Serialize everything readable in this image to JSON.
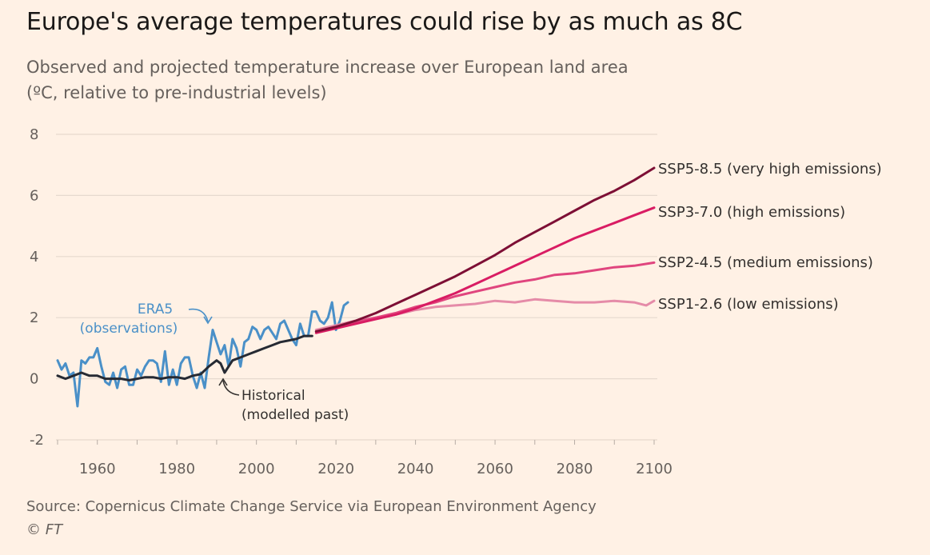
{
  "title": "Europe's average temperatures could rise by as much as 8C",
  "subtitle_line1": "Observed and projected temperature increase over European land area",
  "subtitle_line2": "(ºC, relative to pre-industrial levels)",
  "source": "Source: Copernicus Climate Change Service via European Environment Agency",
  "copyright": "© FT",
  "chart_data": {
    "type": "line",
    "xlim": [
      1950,
      2100
    ],
    "ylim": [
      -2,
      8
    ],
    "yticks": [
      "8",
      "6",
      "4",
      "2",
      "0",
      "-2"
    ],
    "xticks": [
      "1960",
      "1980",
      "2000",
      "2020",
      "2040",
      "2060",
      "2080",
      "2100"
    ],
    "grid": "horizontal",
    "annotations": {
      "era5_line1": "ERA5",
      "era5_line2": "(observations)",
      "historical_line1": "Historical",
      "historical_line2": "(modelled past)"
    },
    "series": [
      {
        "name": "ERA5 (observations)",
        "color": "#4A90C8",
        "x": [
          1950,
          1951,
          1952,
          1953,
          1954,
          1955,
          1956,
          1957,
          1958,
          1959,
          1960,
          1961,
          1962,
          1963,
          1964,
          1965,
          1966,
          1967,
          1968,
          1969,
          1970,
          1971,
          1972,
          1973,
          1974,
          1975,
          1976,
          1977,
          1978,
          1979,
          1980,
          1981,
          1982,
          1983,
          1984,
          1985,
          1986,
          1987,
          1988,
          1989,
          1990,
          1991,
          1992,
          1993,
          1994,
          1995,
          1996,
          1997,
          1998,
          1999,
          2000,
          2001,
          2002,
          2003,
          2004,
          2005,
          2006,
          2007,
          2008,
          2009,
          2010,
          2011,
          2012,
          2013,
          2014,
          2015,
          2016,
          2017,
          2018,
          2019,
          2020,
          2021,
          2022,
          2023
        ],
        "values": [
          0.6,
          0.3,
          0.5,
          0.1,
          0.2,
          -0.9,
          0.6,
          0.5,
          0.7,
          0.7,
          1.0,
          0.4,
          -0.1,
          -0.2,
          0.2,
          -0.3,
          0.3,
          0.4,
          -0.2,
          -0.2,
          0.3,
          0.1,
          0.4,
          0.6,
          0.6,
          0.5,
          -0.1,
          0.9,
          -0.2,
          0.3,
          -0.2,
          0.5,
          0.7,
          0.7,
          0.1,
          -0.3,
          0.2,
          -0.3,
          0.7,
          1.6,
          1.2,
          0.8,
          1.1,
          0.4,
          1.3,
          1.0,
          0.4,
          1.2,
          1.3,
          1.7,
          1.6,
          1.3,
          1.6,
          1.7,
          1.5,
          1.3,
          1.8,
          1.9,
          1.6,
          1.3,
          1.1,
          1.8,
          1.4,
          1.4,
          2.2,
          2.2,
          1.9,
          1.8,
          2.0,
          2.5,
          1.6,
          1.9,
          2.4,
          2.5
        ]
      },
      {
        "name": "Historical (modelled past)",
        "color": "#262A33",
        "x": [
          1950,
          1952,
          1954,
          1956,
          1958,
          1960,
          1962,
          1964,
          1966,
          1968,
          1970,
          1972,
          1974,
          1976,
          1978,
          1980,
          1982,
          1984,
          1986,
          1988,
          1990,
          1991,
          1992,
          1994,
          1996,
          1998,
          2000,
          2002,
          2004,
          2006,
          2008,
          2010,
          2012,
          2014
        ],
        "values": [
          0.1,
          0.0,
          0.1,
          0.2,
          0.1,
          0.1,
          0.0,
          0.0,
          0.0,
          -0.05,
          0.0,
          0.05,
          0.05,
          0.0,
          0.05,
          0.05,
          0.0,
          0.1,
          0.15,
          0.4,
          0.6,
          0.5,
          0.2,
          0.6,
          0.7,
          0.8,
          0.9,
          1.0,
          1.1,
          1.2,
          1.25,
          1.3,
          1.4,
          1.4
        ]
      },
      {
        "name": "SSP1-2.6 (low emissions)",
        "color": "#E58BA8",
        "x": [
          2015,
          2020,
          2025,
          2030,
          2035,
          2040,
          2045,
          2050,
          2055,
          2060,
          2065,
          2070,
          2075,
          2080,
          2085,
          2090,
          2095,
          2098,
          2100
        ],
        "values": [
          1.6,
          1.75,
          1.9,
          2.0,
          2.1,
          2.25,
          2.35,
          2.4,
          2.45,
          2.55,
          2.5,
          2.6,
          2.55,
          2.5,
          2.5,
          2.55,
          2.5,
          2.4,
          2.55
        ]
      },
      {
        "name": "SSP2-4.5 (medium emissions)",
        "color": "#E0457E",
        "x": [
          2015,
          2020,
          2025,
          2030,
          2035,
          2040,
          2045,
          2050,
          2055,
          2060,
          2065,
          2070,
          2075,
          2080,
          2085,
          2090,
          2095,
          2100
        ],
        "values": [
          1.55,
          1.7,
          1.85,
          2.0,
          2.15,
          2.35,
          2.5,
          2.7,
          2.85,
          3.0,
          3.15,
          3.25,
          3.4,
          3.45,
          3.55,
          3.65,
          3.7,
          3.8
        ]
      },
      {
        "name": "SSP3-7.0 (high emissions)",
        "color": "#D91C63",
        "x": [
          2015,
          2020,
          2025,
          2030,
          2035,
          2040,
          2045,
          2050,
          2055,
          2060,
          2065,
          2070,
          2075,
          2080,
          2085,
          2090,
          2095,
          2100
        ],
        "values": [
          1.5,
          1.65,
          1.8,
          1.95,
          2.1,
          2.3,
          2.55,
          2.8,
          3.1,
          3.4,
          3.7,
          4.0,
          4.3,
          4.6,
          4.85,
          5.1,
          5.35,
          5.6
        ]
      },
      {
        "name": "SSP5-8.5 (very high emissions)",
        "color": "#7D0F35",
        "x": [
          2015,
          2020,
          2025,
          2030,
          2035,
          2040,
          2045,
          2050,
          2055,
          2060,
          2065,
          2070,
          2075,
          2080,
          2085,
          2090,
          2095,
          2100
        ],
        "values": [
          1.55,
          1.7,
          1.9,
          2.15,
          2.45,
          2.75,
          3.05,
          3.35,
          3.7,
          4.05,
          4.45,
          4.8,
          5.15,
          5.5,
          5.85,
          6.15,
          6.5,
          6.9
        ]
      }
    ],
    "series_labels": [
      "SSP5-8.5 (very high emissions)",
      "SSP3-7.0 (high emissions)",
      "SSP2-4.5 (medium emissions)",
      "SSP1-2.6 (low emissions)"
    ]
  }
}
